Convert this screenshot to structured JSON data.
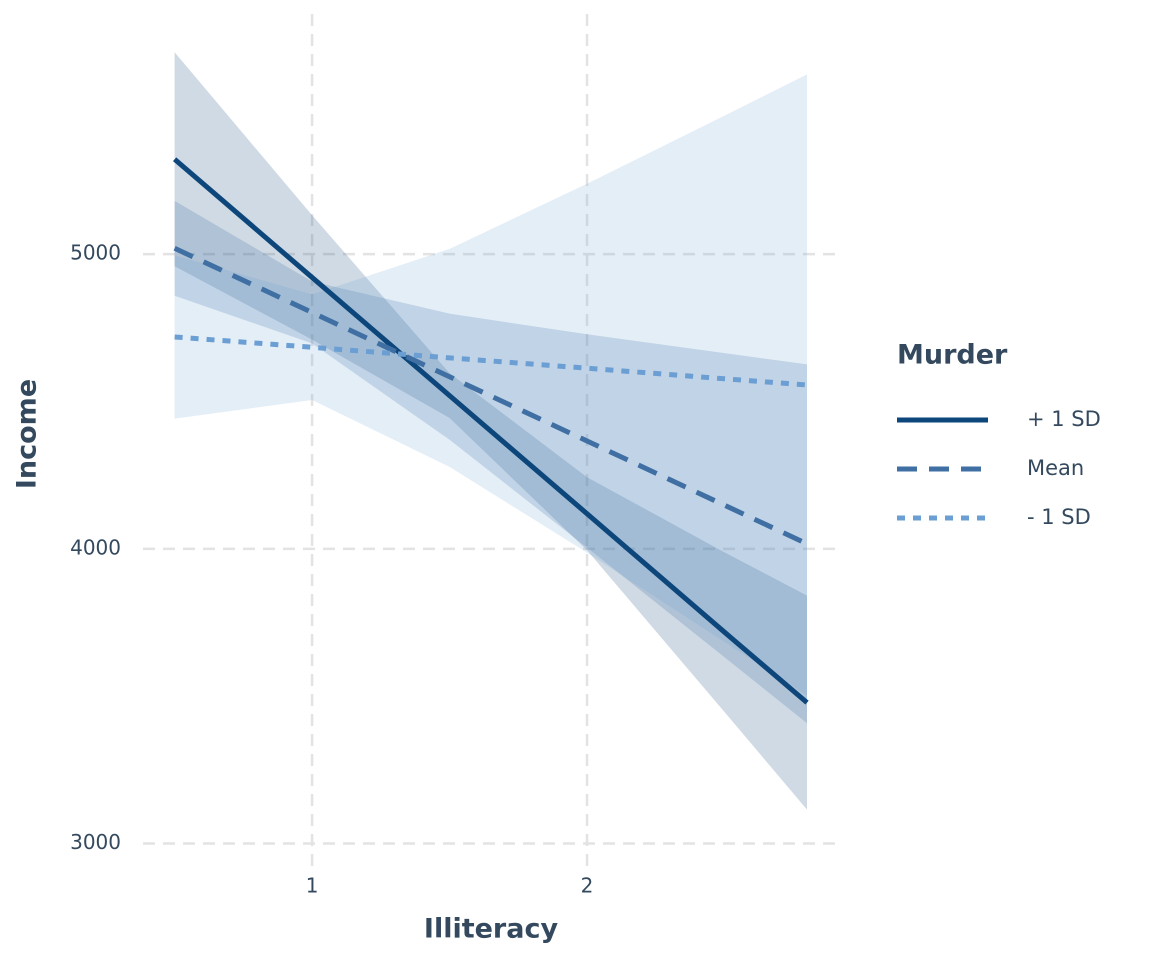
{
  "chart_data": {
    "type": "line",
    "x_label": "Illiteracy",
    "y_label": "Income",
    "legend_title": "Murder",
    "legend": "right",
    "grid": true,
    "xlim": [
      0.385,
      2.92
    ],
    "ylim": [
      2910,
      5815
    ],
    "xticks": [
      1,
      2
    ],
    "yticks": [
      3000,
      4000,
      5000
    ],
    "x": [
      0.5,
      1.0,
      1.5,
      2.0,
      2.5,
      2.8
    ],
    "series": [
      {
        "name": "+ 1 SD",
        "color": "#0d467a",
        "dash": "solid",
        "values": [
          5322,
          4921,
          4520,
          4119,
          3717,
          3478
        ],
        "lower": [
          4959,
          4710,
          4444,
          3995,
          3446,
          3115
        ],
        "upper": [
          5685,
          5132,
          4596,
          4243,
          3988,
          3841
        ]
      },
      {
        "name": "Mean",
        "color": "#3f6fa3",
        "dash": "dashed",
        "values": [
          5020,
          4802,
          4584,
          4366,
          4148,
          4017
        ],
        "lower": [
          4859,
          4697,
          4370,
          4004,
          3632,
          3408
        ],
        "upper": [
          5181,
          4907,
          4798,
          4728,
          4664,
          4626
        ]
      },
      {
        "name": "- 1 SD",
        "color": "#6b9ed3",
        "dash": "dotted",
        "values": [
          4719,
          4684,
          4648,
          4613,
          4577,
          4556
        ],
        "lower": [
          4442,
          4505,
          4278,
          3987,
          3684,
          3502
        ],
        "upper": [
          4996,
          4863,
          5018,
          5239,
          5470,
          5610
        ]
      }
    ]
  }
}
